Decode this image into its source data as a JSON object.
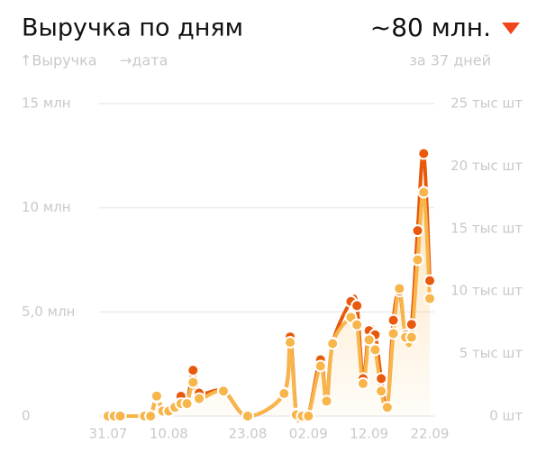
{
  "chart_data": {
    "type": "line",
    "title": "Выручка по дням",
    "total": "~80 млн.",
    "subtitle": "за 37 дней",
    "y_label": "↑Выручка",
    "x_label": "→дата",
    "x": [
      "31.07",
      "01.08",
      "02.08",
      "06.08",
      "07.08",
      "08.08",
      "09.08",
      "10.08",
      "11.08",
      "12.08",
      "13.08",
      "14.08",
      "15.08",
      "19.08",
      "23.08",
      "29.08",
      "30.08",
      "31.08",
      "01.09",
      "02.09",
      "04.09",
      "05.09",
      "06.09",
      "09.09",
      "10.09",
      "11.09",
      "12.09",
      "13.09",
      "14.09",
      "15.09",
      "16.09",
      "17.09",
      "18.09",
      "19.09",
      "20.09",
      "21.09",
      "22.09"
    ],
    "xticks": [
      "31.07",
      "10.08",
      "23.08",
      "02.09",
      "12.09",
      "22.09"
    ],
    "series": [
      {
        "color": "#e8590c",
        "values": [
          0,
          0,
          0,
          0,
          0,
          0.9,
          0.2,
          0.2,
          0.4,
          0.95,
          0.6,
          2.2,
          1.1,
          1.2,
          0,
          1.1,
          3.8,
          0.1,
          0,
          0,
          2.7,
          0.7,
          3.5,
          5.5,
          5.3,
          1.8,
          4.1,
          3.9,
          1.8,
          0.4,
          4.6,
          6.0,
          3.9,
          4.4,
          8.9,
          12.6,
          6.5
        ]
      },
      {
        "color": "#f7b54a",
        "axis": "y2",
        "values": [
          0,
          0,
          0,
          0,
          0,
          1.6,
          0.4,
          0.4,
          0.7,
          1.0,
          1.0,
          2.7,
          1.4,
          2.0,
          0,
          1.8,
          5.9,
          0.1,
          0,
          0,
          4.0,
          1.2,
          5.8,
          7.9,
          7.3,
          2.6,
          6.1,
          5.3,
          2.0,
          0.7,
          6.6,
          10.2,
          6.3,
          6.3,
          12.5,
          17.9,
          9.4
        ]
      }
    ],
    "ylim": [
      0,
      15
    ],
    "yticks": [
      {
        "value": 0,
        "label": "0"
      },
      {
        "value": 5,
        "label": "5,0 млн"
      },
      {
        "value": 10,
        "label": "10 млн"
      },
      {
        "value": 15,
        "label": "15 млн"
      }
    ],
    "y2lim": [
      0,
      25
    ],
    "y2ticks": [
      {
        "value": 0,
        "label": "0 шт"
      },
      {
        "value": 5,
        "label": "5 тыс шт"
      },
      {
        "value": 10,
        "label": "10 тыс шт"
      },
      {
        "value": 15,
        "label": "15 тыс шт"
      },
      {
        "value": 20,
        "label": "20 тыс шт"
      },
      {
        "value": 25,
        "label": "25 тыс шт"
      }
    ],
    "grid": true
  }
}
